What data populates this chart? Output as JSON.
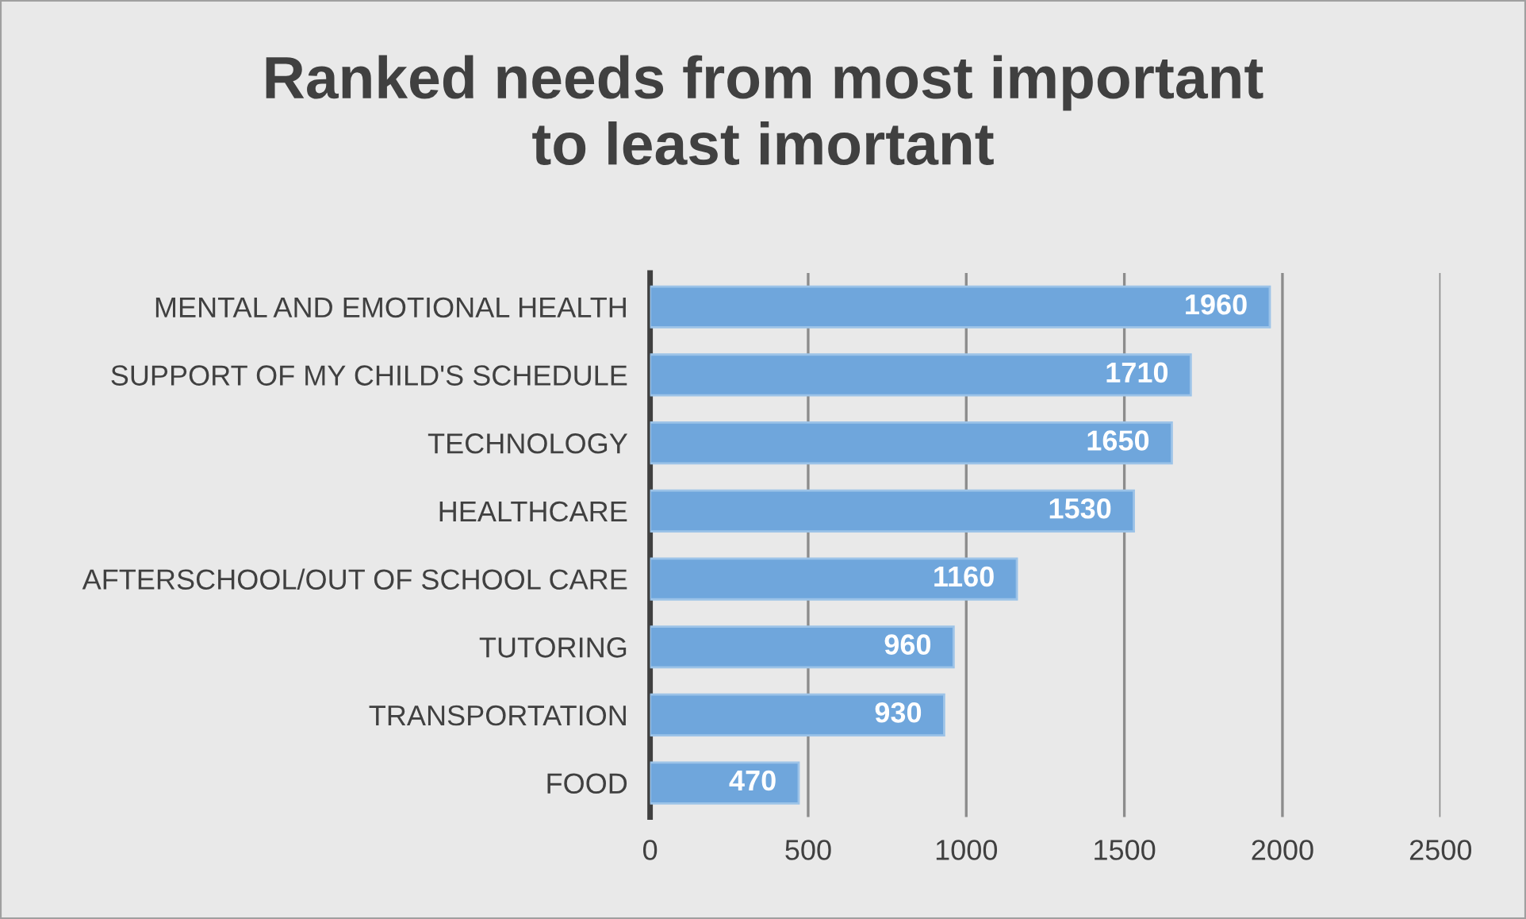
{
  "chart_data": {
    "type": "bar",
    "orientation": "horizontal",
    "title": "Ranked needs from most important\nto least imortant",
    "categories": [
      "MENTAL AND EMOTIONAL HEALTH",
      "SUPPORT OF MY CHILD'S SCHEDULE",
      "TECHNOLOGY",
      "HEALTHCARE",
      "AFTERSCHOOL/OUT OF SCHOOL CARE",
      "TUTORING",
      "TRANSPORTATION",
      "FOOD"
    ],
    "values": [
      1960,
      1710,
      1650,
      1530,
      1160,
      960,
      930,
      470
    ],
    "color": "#6fa6dc",
    "xlim": [
      0,
      2500
    ],
    "xticks": [
      0,
      500,
      1000,
      1500,
      2000,
      2500
    ],
    "grid": "x",
    "data_labels": true
  }
}
